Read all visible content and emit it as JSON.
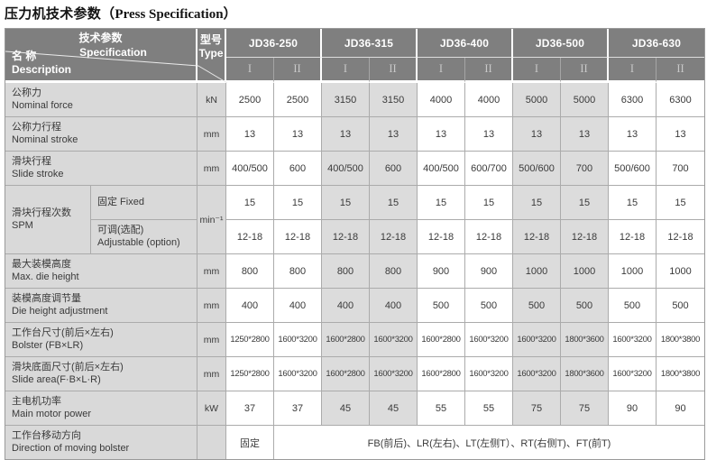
{
  "title": {
    "zh": "压力机技术参数（",
    "en": "Press Specification",
    "close": "）"
  },
  "header": {
    "param_zh": "技术参数",
    "param_en": "Specification",
    "name_zh": "名 称",
    "name_en": "Description",
    "type_zh": "型号",
    "type_en": "Type",
    "models": [
      "JD36-250",
      "JD36-315",
      "JD36-400",
      "JD36-500",
      "JD36-630"
    ],
    "variants": [
      "I",
      "II"
    ]
  },
  "colors": {
    "header_bg": "#7f7f7f",
    "header_text": "#ffffff",
    "variant_text": "#c9c9c9",
    "label_bg": "#d9d9d9",
    "stripe_bg": "#dcdcdc",
    "border": "#ababab",
    "body_text": "#3a3a3a"
  },
  "table": {
    "stripe_columns": [
      2,
      3,
      6,
      7
    ],
    "rows": [
      {
        "label_zh": "公称力",
        "label_en": "Nominal force",
        "unit": "kN",
        "values": [
          "2500",
          "2500",
          "3150",
          "3150",
          "4000",
          "4000",
          "5000",
          "5000",
          "6300",
          "6300"
        ]
      },
      {
        "label_zh": "公称力行程",
        "label_en": "Nominal stroke",
        "unit": "mm",
        "values": [
          "13",
          "13",
          "13",
          "13",
          "13",
          "13",
          "13",
          "13",
          "13",
          "13"
        ]
      },
      {
        "label_zh": "滑块行程",
        "label_en": "Slide stroke",
        "unit": "mm",
        "values": [
          "400/500",
          "600",
          "400/500",
          "600",
          "400/500",
          "600/700",
          "500/600",
          "700",
          "500/600",
          "700"
        ]
      },
      {
        "type": "group",
        "label_zh": "滑块行程次数",
        "label_en": "SPM",
        "unit": "min⁻¹",
        "subs": [
          {
            "label_zh": "固定  Fixed",
            "label_en": "",
            "values": [
              "15",
              "15",
              "15",
              "15",
              "15",
              "15",
              "15",
              "15",
              "15",
              "15"
            ]
          },
          {
            "label_zh": "可调(选配)",
            "label_en": "Adjustable (option)",
            "values": [
              "12-18",
              "12-18",
              "12-18",
              "12-18",
              "12-18",
              "12-18",
              "12-18",
              "12-18",
              "12-18",
              "12-18"
            ]
          }
        ]
      },
      {
        "label_zh": "最大装模高度",
        "label_en": "Max. die height",
        "unit": "mm",
        "values": [
          "800",
          "800",
          "800",
          "800",
          "900",
          "900",
          "1000",
          "1000",
          "1000",
          "1000"
        ]
      },
      {
        "label_zh": "装模高度调节量",
        "label_en": "Die height adjustment",
        "unit": "mm",
        "values": [
          "400",
          "400",
          "400",
          "400",
          "500",
          "500",
          "500",
          "500",
          "500",
          "500"
        ]
      },
      {
        "label_zh": "工作台尺寸(前后×左右)",
        "label_en": "Bolster (FB×LR)",
        "unit": "mm",
        "values": [
          "1250*2800",
          "1600*3200",
          "1600*2800",
          "1600*3200",
          "1600*2800",
          "1600*3200",
          "1600*3200",
          "1800*3600",
          "1600*3200",
          "1800*3800"
        ]
      },
      {
        "label_zh": "滑块底面尺寸(前后×左右)",
        "label_en": "Slide area(F·B×L·R)",
        "unit": "mm",
        "values": [
          "1250*2800",
          "1600*3200",
          "1600*2800",
          "1600*3200",
          "1600*2800",
          "1600*3200",
          "1600*3200",
          "1800*3600",
          "1600*3200",
          "1800*3800"
        ]
      },
      {
        "label_zh": "主电机功率",
        "label_en": "Main motor power",
        "unit": "kW",
        "values": [
          "37",
          "37",
          "45",
          "45",
          "55",
          "55",
          "75",
          "75",
          "90",
          "90"
        ]
      },
      {
        "type": "merged",
        "label_zh": "工作台移动方向",
        "label_en": "Direction of moving bolster",
        "unit": "",
        "first": "固定",
        "merged": "FB(前后)、LR(左右)、LT(左侧T）、RT(右侧T)、FT(前T)"
      }
    ]
  }
}
